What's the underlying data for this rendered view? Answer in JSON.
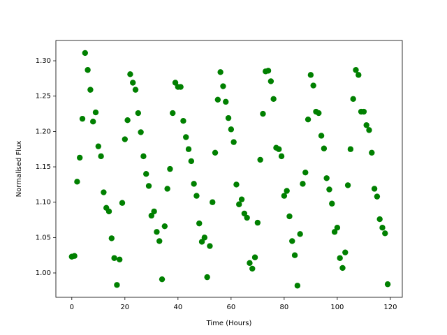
{
  "chart_data": {
    "type": "scatter",
    "x_label": "Time (Hours)",
    "y_label": "Normalised Flux",
    "color": "#008000",
    "x": [
      0,
      1,
      2,
      3,
      4,
      5,
      6,
      7,
      8,
      9,
      10,
      11,
      12,
      13,
      14,
      15,
      16,
      17,
      18,
      19,
      20,
      21,
      22,
      23,
      24,
      25,
      26,
      27,
      28,
      29,
      30,
      31,
      32,
      33,
      34,
      35,
      36,
      37,
      38,
      39,
      40,
      41,
      42,
      43,
      44,
      45,
      46,
      47,
      48,
      49,
      50,
      51,
      52,
      53,
      54,
      55,
      56,
      57,
      58,
      59,
      60,
      61,
      62,
      63,
      64,
      65,
      66,
      67,
      68,
      69,
      70,
      71,
      72,
      73,
      74,
      75,
      76,
      77,
      78,
      79,
      80,
      81,
      82,
      83,
      84,
      85,
      86,
      87,
      88,
      89,
      90,
      91,
      92,
      93,
      94,
      95,
      96,
      97,
      98,
      99,
      100,
      101,
      102,
      103,
      104,
      105,
      106,
      107,
      108,
      109,
      110,
      111,
      112,
      113,
      114,
      115,
      116,
      117,
      118,
      119
    ],
    "values": [
      1.023,
      1.024,
      1.129,
      1.163,
      1.218,
      1.311,
      1.287,
      1.259,
      1.214,
      1.227,
      1.179,
      1.165,
      1.114,
      1.092,
      1.087,
      1.049,
      1.021,
      0.983,
      1.019,
      1.099,
      1.189,
      1.216,
      1.281,
      1.269,
      1.259,
      1.226,
      1.199,
      1.165,
      1.14,
      1.123,
      1.081,
      1.087,
      1.058,
      1.045,
      0.991,
      1.066,
      1.119,
      1.147,
      1.226,
      1.269,
      1.263,
      1.263,
      1.215,
      1.192,
      1.175,
      1.158,
      1.126,
      1.109,
      1.07,
      1.044,
      1.05,
      0.994,
      1.038,
      1.1,
      1.17,
      1.245,
      1.284,
      1.264,
      1.242,
      1.219,
      1.203,
      1.185,
      1.125,
      1.097,
      1.104,
      1.084,
      1.078,
      1.014,
      1.006,
      1.022,
      1.071,
      1.16,
      1.225,
      1.285,
      1.286,
      1.271,
      1.246,
      1.177,
      1.175,
      1.165,
      1.109,
      1.116,
      1.08,
      1.045,
      1.025,
      0.982,
      1.055,
      1.126,
      1.142,
      1.217,
      1.28,
      1.265,
      1.228,
      1.226,
      1.194,
      1.176,
      1.134,
      1.118,
      1.098,
      1.058,
      1.064,
      1.021,
      1.007,
      1.029,
      1.124,
      1.175,
      1.246,
      1.287,
      1.28,
      1.228,
      1.228,
      1.209,
      1.202,
      1.17,
      1.119,
      1.108,
      1.076,
      1.064,
      1.056,
      0.984
    ],
    "xlim": [
      -6,
      124.5
    ],
    "ylim": [
      0.9655,
      1.3287
    ],
    "xticks": [
      0,
      20,
      40,
      60,
      80,
      100,
      120
    ],
    "yticks": [
      {
        "value": 1,
        "label": "1.00"
      },
      1.05,
      {
        "value": 1.1,
        "label": "1.10"
      },
      1.15,
      {
        "value": 1.2,
        "label": "1.20"
      },
      1.25,
      {
        "value": 1.3,
        "label": "1.30"
      }
    ]
  }
}
